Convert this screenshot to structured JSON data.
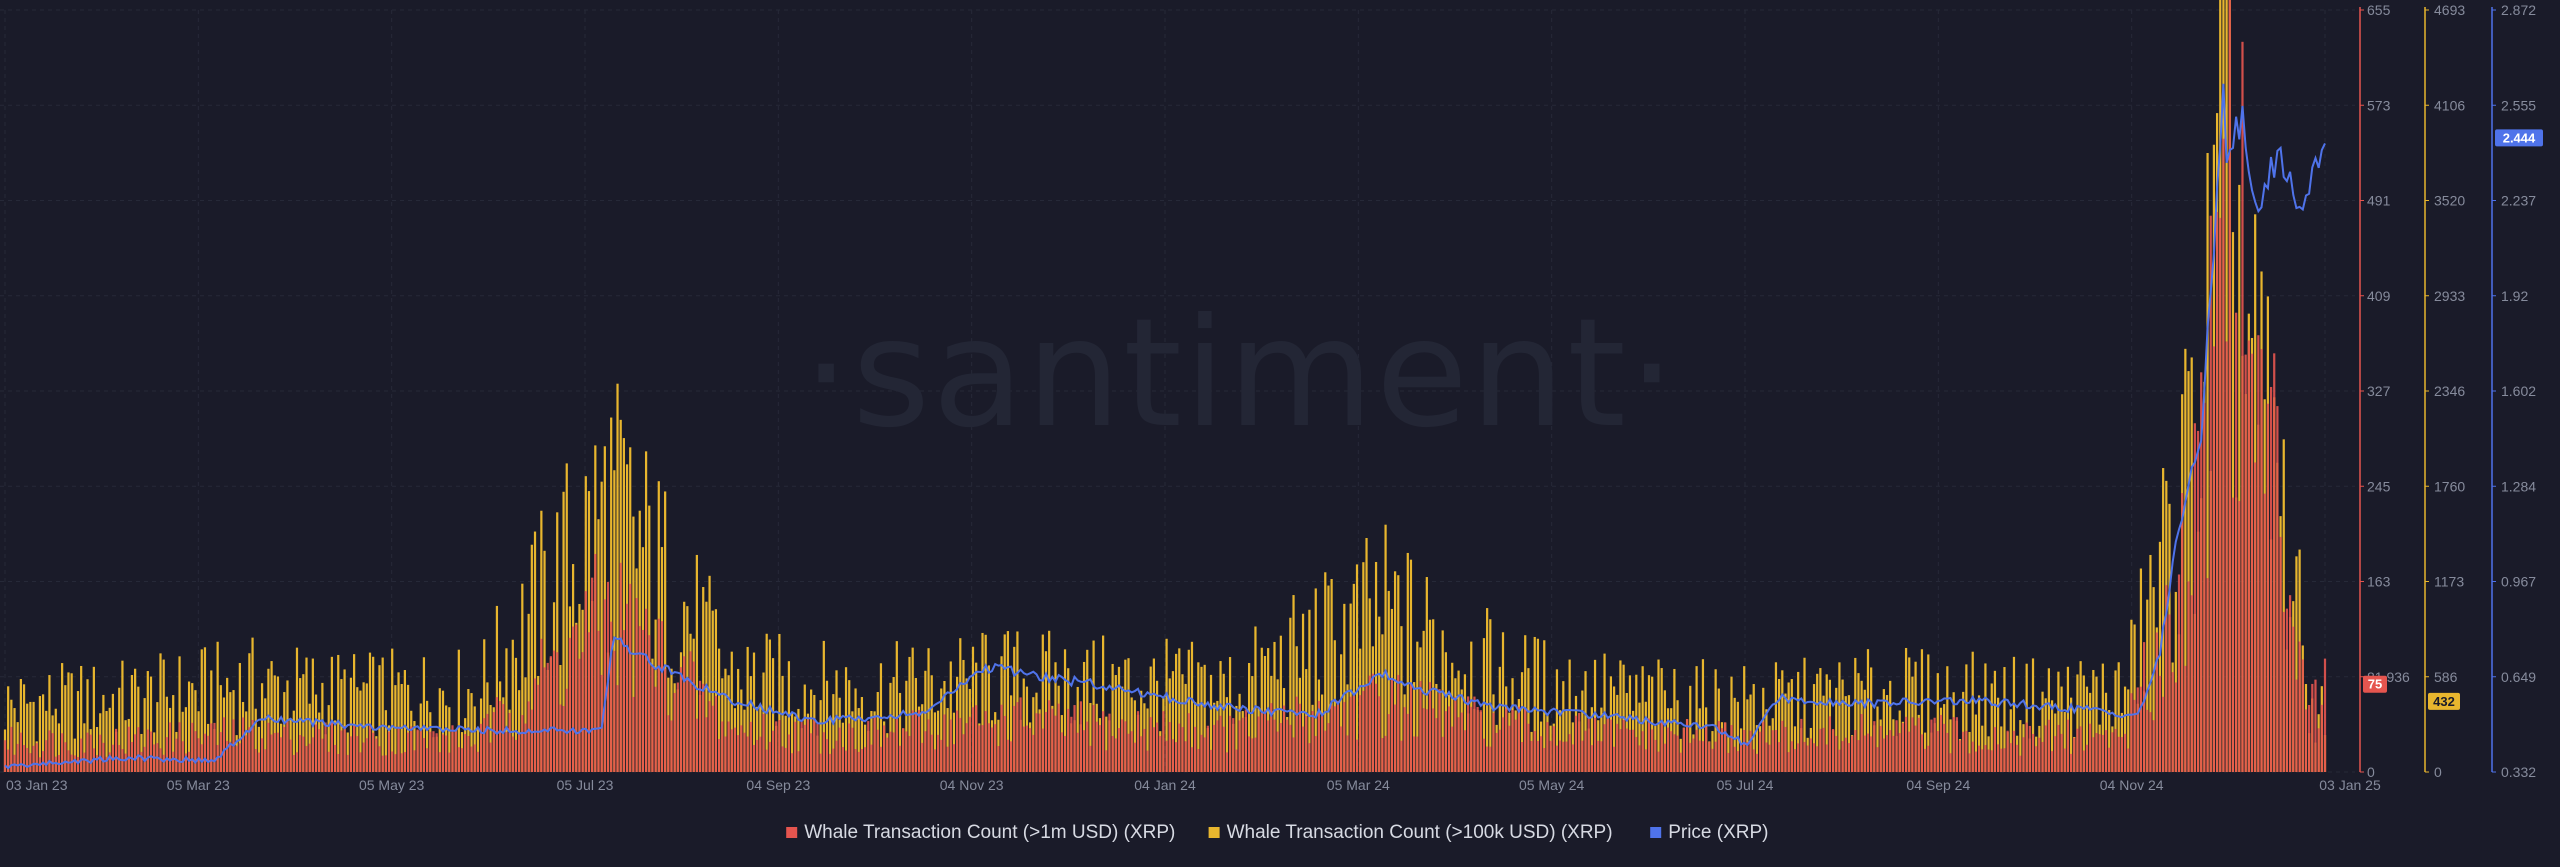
{
  "watermark": "·santiment·",
  "chart_data": {
    "type": "bar",
    "x_start": "2023-01-03",
    "x_end": "2025-01-03",
    "x_ticks": [
      "03 Jan 23",
      "05 Mar 23",
      "05 May 23",
      "05 Jul 23",
      "04 Sep 23",
      "04 Nov 23",
      "04 Jan 24",
      "05 Mar 24",
      "05 May 24",
      "05 Jul 24",
      "04 Sep 24",
      "04 Nov 24",
      "03 Jan 25"
    ],
    "axes": {
      "whale_1m": {
        "ylim": [
          0,
          655
        ],
        "ticks": [
          "0",
          "81.936",
          "163",
          "245",
          "327",
          "409",
          "491",
          "573",
          "655"
        ],
        "color": "#e5554f"
      },
      "whale_100k": {
        "ylim": [
          0,
          4693
        ],
        "ticks": [
          "0",
          "586",
          "1173",
          "1760",
          "2346",
          "2933",
          "3520",
          "4106",
          "4693"
        ],
        "color": "#e8b62e"
      },
      "price": {
        "ylim": [
          0.332,
          2.872
        ],
        "ticks": [
          "0.332",
          "0.649",
          "0.967",
          "1.284",
          "1.602",
          "1.92",
          "2.237",
          "2.555",
          "2.872"
        ],
        "color": "#4f73ea"
      }
    },
    "current_values": {
      "whale_1m": "75",
      "whale_100k": "432",
      "price": "2.444"
    },
    "series": [
      {
        "name": "Whale Transaction Count (>1m USD) (XRP)",
        "type": "bar",
        "axis": "whale_1m",
        "color": "#e5554f",
        "x": [
          "2023-01-03",
          "2023-02-15",
          "2023-03-20",
          "2023-04-25",
          "2023-06-01",
          "2023-07-13",
          "2023-08-20",
          "2023-10-01",
          "2023-11-15",
          "2023-12-20",
          "2024-01-25",
          "2024-03-12",
          "2024-04-20",
          "2024-06-01",
          "2024-07-10",
          "2024-08-20",
          "2024-10-01",
          "2024-11-01",
          "2024-11-15",
          "2024-11-25",
          "2024-12-03",
          "2024-12-10",
          "2024-12-20",
          "2024-12-30"
        ],
        "values": [
          30,
          32,
          38,
          34,
          32,
          160,
          42,
          36,
          52,
          44,
          40,
          70,
          44,
          36,
          34,
          40,
          34,
          38,
          150,
          300,
          650,
          420,
          260,
          75
        ]
      },
      {
        "name": "Whale Transaction Count (>100k USD) (XRP)",
        "type": "bar",
        "axis": "whale_100k",
        "color": "#e8b62e",
        "x": [
          "2023-01-03",
          "2023-02-15",
          "2023-03-20",
          "2023-04-25",
          "2023-06-01",
          "2023-07-13",
          "2023-08-20",
          "2023-10-01",
          "2023-11-15",
          "2023-12-20",
          "2024-01-25",
          "2024-03-12",
          "2024-04-20",
          "2024-06-01",
          "2024-07-10",
          "2024-08-20",
          "2024-10-01",
          "2024-11-01",
          "2024-11-15",
          "2024-11-25",
          "2024-12-03",
          "2024-12-10",
          "2024-12-20",
          "2024-12-30"
        ],
        "values": [
          500,
          550,
          650,
          580,
          600,
          2000,
          700,
          600,
          700,
          650,
          620,
          1200,
          700,
          550,
          520,
          600,
          550,
          600,
          1700,
          2600,
          4600,
          3000,
          2000,
          432
        ]
      },
      {
        "name": "Price (XRP)",
        "type": "line",
        "axis": "price",
        "color": "#4f73ea",
        "x": [
          "2023-01-03",
          "2023-02-10",
          "2023-03-10",
          "2023-03-25",
          "2023-05-01",
          "2023-06-10",
          "2023-07-10",
          "2023-07-14",
          "2023-07-20",
          "2023-08-17",
          "2023-09-15",
          "2023-10-20",
          "2023-11-08",
          "2023-12-15",
          "2024-01-20",
          "2024-02-20",
          "2024-03-12",
          "2024-03-20",
          "2024-04-15",
          "2024-05-20",
          "2024-06-25",
          "2024-07-05",
          "2024-07-15",
          "2024-08-10",
          "2024-09-15",
          "2024-10-20",
          "2024-11-05",
          "2024-11-12",
          "2024-11-17",
          "2024-11-25",
          "2024-12-02",
          "2024-12-03",
          "2024-12-08",
          "2024-12-12",
          "2024-12-20",
          "2024-12-26",
          "2025-01-03"
        ],
        "values": [
          0.35,
          0.38,
          0.37,
          0.51,
          0.48,
          0.47,
          0.47,
          0.8,
          0.73,
          0.58,
          0.5,
          0.53,
          0.68,
          0.62,
          0.55,
          0.52,
          0.66,
          0.62,
          0.55,
          0.52,
          0.48,
          0.42,
          0.58,
          0.56,
          0.57,
          0.54,
          0.52,
          0.72,
          1.1,
          1.45,
          2.6,
          2.4,
          2.5,
          2.2,
          2.4,
          2.2,
          2.444
        ]
      }
    ],
    "legend_position": "bottom",
    "grid": true
  }
}
